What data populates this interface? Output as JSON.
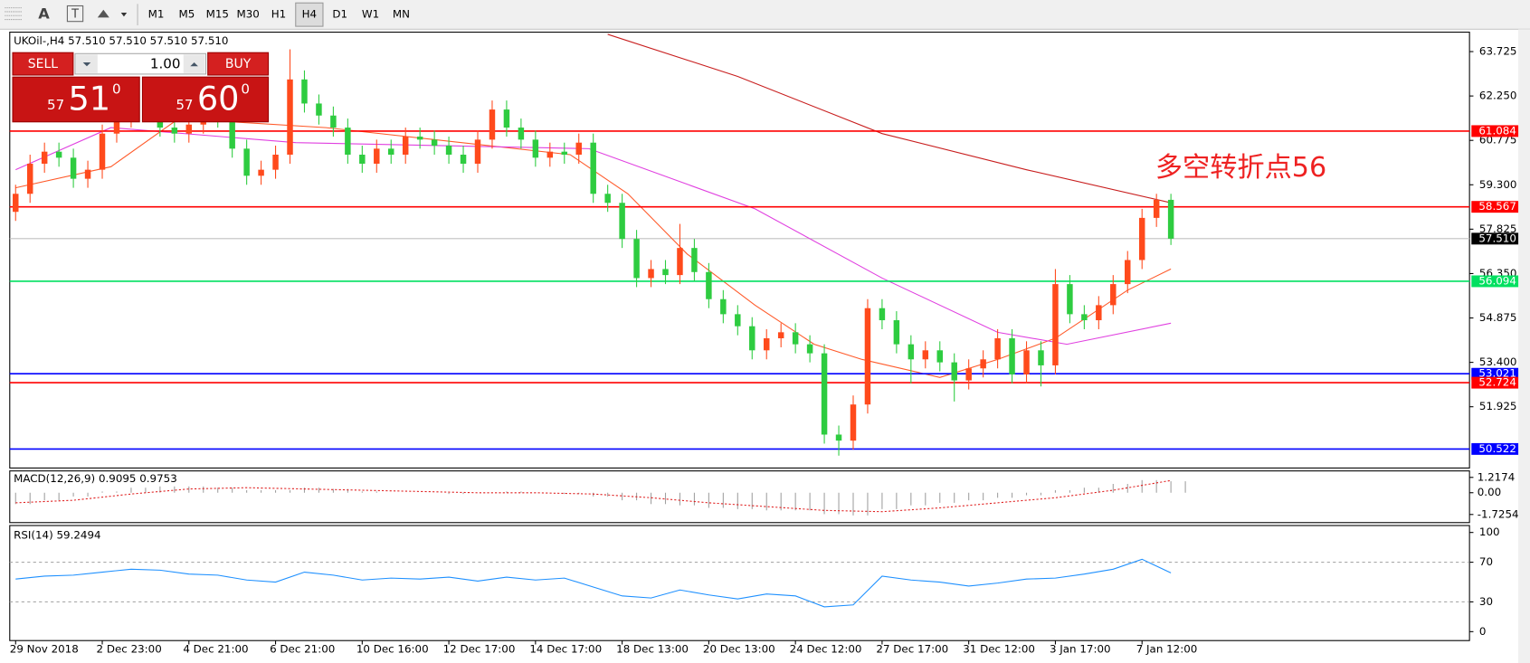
{
  "toolbar": {
    "tools": [
      "A",
      "T"
    ],
    "periods": [
      "M1",
      "M5",
      "M15",
      "M30",
      "H1",
      "H4",
      "D1",
      "W1",
      "MN"
    ],
    "active_index": 5
  },
  "trade_panel": {
    "symbol_line": "UKOil-,H4  57.510 57.510 57.510 57.510",
    "sell": "SELL",
    "buy": "BUY",
    "lot": "1.00",
    "sell_price": {
      "prefix": "57",
      "main": "51",
      "sup": "0"
    },
    "buy_price": {
      "prefix": "57",
      "main": "60",
      "sup": "0"
    }
  },
  "chart_data": [
    {
      "type": "candlestick",
      "up_color": "#ff4a1c",
      "down_color": "#2ecc40",
      "x_labels": [
        "29 Nov 2018",
        "2 Dec 23:00",
        "4 Dec 21:00",
        "6 Dec 21:00",
        "10 Dec 16:00",
        "12 Dec 17:00",
        "14 Dec 17:00",
        "18 Dec 13:00",
        "20 Dec 13:00",
        "24 Dec 12:00",
        "27 Dec 17:00",
        "31 Dec 12:00",
        "3 Jan 17:00",
        "7 Jan 12:00"
      ],
      "open": [
        58.4,
        59.0,
        60.0,
        60.4,
        60.2,
        59.5,
        59.8,
        61.0,
        61.5,
        62.3,
        61.8,
        61.2,
        61.0,
        61.3,
        61.8,
        61.5,
        60.5,
        59.6,
        59.8,
        60.3,
        62.8,
        62.0,
        61.6,
        61.2,
        60.3,
        60.0,
        60.5,
        60.3,
        60.9,
        60.8,
        60.6,
        60.3,
        60.0,
        60.8,
        61.8,
        61.2,
        60.8,
        60.2,
        60.4,
        60.3,
        60.7,
        59.0,
        58.7,
        57.5,
        56.2,
        56.5,
        56.3,
        57.2,
        56.4,
        55.5,
        55.0,
        54.6,
        53.8,
        54.2,
        54.4,
        54.0,
        53.7,
        51.0,
        50.8,
        52.0,
        55.2,
        54.8,
        54.0,
        53.5,
        53.8,
        53.4,
        52.8,
        53.2,
        53.5,
        54.2,
        53.0,
        53.8,
        53.3,
        56.0,
        55.0,
        54.8,
        55.3,
        56.0,
        56.8,
        58.2,
        58.8
      ],
      "high": [
        59.3,
        60.3,
        60.7,
        60.7,
        60.5,
        60.1,
        61.3,
        61.8,
        62.6,
        62.6,
        62.1,
        61.5,
        61.6,
        62.1,
        62.1,
        61.8,
        60.8,
        60.1,
        60.6,
        63.8,
        63.1,
        62.3,
        61.9,
        61.5,
        60.6,
        60.8,
        60.8,
        61.2,
        61.2,
        61.1,
        60.9,
        60.6,
        61.1,
        62.1,
        62.1,
        61.5,
        61.1,
        60.7,
        60.7,
        61.0,
        61.0,
        59.3,
        59.0,
        57.8,
        56.8,
        56.8,
        58.0,
        57.5,
        56.7,
        55.8,
        55.3,
        54.9,
        54.5,
        54.7,
        54.7,
        54.3,
        54.0,
        51.3,
        52.3,
        55.5,
        55.5,
        55.1,
        54.3,
        54.1,
        54.1,
        53.7,
        53.5,
        53.8,
        54.5,
        54.5,
        54.1,
        54.1,
        56.5,
        56.3,
        55.3,
        55.6,
        56.3,
        57.1,
        58.5,
        59.0,
        59.0
      ],
      "low": [
        58.1,
        58.7,
        59.7,
        59.9,
        59.2,
        59.2,
        59.5,
        60.7,
        61.2,
        61.5,
        60.9,
        60.7,
        60.7,
        61.0,
        61.2,
        60.2,
        59.3,
        59.3,
        59.5,
        60.0,
        61.7,
        61.3,
        60.9,
        60.0,
        59.7,
        59.7,
        60.0,
        60.0,
        60.5,
        60.3,
        60.0,
        59.7,
        59.7,
        60.5,
        60.9,
        60.5,
        59.9,
        59.9,
        60.0,
        60.0,
        58.7,
        58.4,
        57.2,
        55.9,
        55.9,
        56.0,
        56.0,
        56.1,
        55.2,
        54.7,
        54.3,
        53.5,
        53.5,
        53.9,
        53.7,
        53.4,
        50.7,
        50.3,
        50.5,
        51.7,
        54.5,
        53.7,
        52.7,
        53.2,
        53.1,
        52.1,
        52.5,
        52.9,
        53.2,
        52.7,
        52.7,
        52.6,
        53.0,
        54.7,
        54.5,
        54.5,
        55.0,
        55.7,
        56.5,
        57.9,
        57.3
      ],
      "close": [
        59.0,
        60.0,
        60.4,
        60.2,
        59.5,
        59.8,
        61.0,
        61.5,
        62.3,
        61.8,
        61.2,
        61.0,
        61.3,
        61.8,
        61.5,
        60.5,
        59.6,
        59.8,
        60.3,
        62.8,
        62.0,
        61.6,
        61.2,
        60.3,
        60.0,
        60.5,
        60.3,
        60.9,
        60.8,
        60.6,
        60.3,
        60.0,
        60.8,
        61.8,
        61.2,
        60.8,
        60.2,
        60.4,
        60.3,
        60.7,
        59.0,
        58.7,
        57.5,
        56.2,
        56.5,
        56.3,
        57.2,
        56.4,
        55.5,
        55.0,
        54.6,
        53.8,
        54.2,
        54.4,
        54.0,
        53.7,
        51.0,
        50.8,
        52.0,
        55.2,
        54.8,
        54.0,
        53.5,
        53.8,
        53.4,
        52.8,
        53.2,
        53.5,
        54.2,
        53.0,
        53.8,
        53.3,
        56.0,
        55.0,
        54.8,
        55.3,
        56.0,
        56.8,
        58.2,
        58.8,
        57.51
      ],
      "ylim": [
        49.89,
        64.37
      ],
      "yticks": [
        63.725,
        {
          "value": 62.25,
          "label": "62.250"
        },
        60.775,
        {
          "value": 59.3,
          "label": "59.300"
        },
        57.825,
        {
          "value": 56.35,
          "label": "56.350"
        },
        54.875,
        {
          "value": 53.4,
          "label": "53.400"
        },
        51.925
      ],
      "moving_averages": [
        {
          "color": "#ff5a2a",
          "x": [
            0,
            6.6,
            11.3,
            21.5,
            38.4,
            42.4,
            46.5,
            51.2,
            55.3,
            58.6,
            64,
            68,
            72,
            77,
            80
          ],
          "values": [
            59.2,
            59.9,
            61.5,
            61.2,
            60.3,
            59.0,
            57.0,
            55.3,
            54.0,
            53.5,
            52.9,
            53.5,
            54.2,
            55.8,
            56.5
          ]
        },
        {
          "color": "#e040e0",
          "x": [
            0,
            6.6,
            19.4,
            39.7,
            51.2,
            60,
            68,
            72.8,
            80
          ],
          "values": [
            59.8,
            61.2,
            60.7,
            60.5,
            58.5,
            56.2,
            54.4,
            54.0,
            54.7
          ]
        },
        {
          "color": "#c81e1e",
          "x": [
            41,
            50,
            60,
            70,
            80
          ],
          "values": [
            64.3,
            62.9,
            61.0,
            59.8,
            58.7
          ]
        }
      ],
      "levels": [
        {
          "value": 61.084,
          "color": "#ff0000"
        },
        {
          "value": 58.567,
          "color": "#ff0000"
        },
        {
          "value": 56.094,
          "color": "#00e060"
        },
        {
          "value": 53.021,
          "color": "#0000ff"
        },
        {
          "value": 52.724,
          "color": "#ff0000"
        },
        {
          "value": 50.522,
          "color": "#0000ff"
        }
      ],
      "current_price": {
        "value": 57.51,
        "label": "57.510"
      },
      "annotation": "多空转折点56"
    },
    {
      "type": "macd",
      "title": "MACD(12,26,9) 0.9095 0.9753",
      "ylim": [
        -2.37,
        1.73
      ],
      "yticks": [
        1.2174,
        {
          "value": 0,
          "label": "0.00"
        },
        -1.7254
      ],
      "histogram": {
        "color": "#a0a0a0",
        "x": [
          0,
          2,
          4,
          6,
          8,
          10,
          12,
          14,
          16,
          18,
          20,
          22,
          24,
          26,
          28,
          30,
          32,
          34,
          36,
          38,
          40,
          42,
          44,
          46,
          48,
          50,
          52,
          54,
          56,
          58,
          60,
          62,
          64,
          66,
          68,
          70,
          72,
          74,
          76,
          78,
          80
        ],
        "values": [
          -0.9,
          -0.6,
          -0.3,
          0.1,
          0.4,
          0.5,
          0.5,
          0.4,
          0.2,
          0.2,
          0.4,
          0.3,
          0.1,
          0.0,
          0.0,
          -0.1,
          0.0,
          0.1,
          0.0,
          -0.1,
          -0.3,
          -0.6,
          -0.9,
          -1.0,
          -1.2,
          -1.3,
          -1.4,
          -1.4,
          -1.7,
          -1.8,
          -1.3,
          -1.0,
          -0.8,
          -0.6,
          -0.4,
          -0.2,
          0.2,
          0.4,
          0.7,
          1.0,
          0.9095
        ]
      },
      "signal": {
        "color": "#e02020",
        "x": [
          0,
          4,
          8,
          12,
          16,
          20,
          24,
          28,
          32,
          36,
          40,
          44,
          48,
          52,
          56,
          60,
          64,
          68,
          72,
          76,
          80
        ],
        "values": [
          -0.8,
          -0.6,
          -0.1,
          0.3,
          0.4,
          0.3,
          0.2,
          0.1,
          0.0,
          0.0,
          -0.1,
          -0.4,
          -0.8,
          -1.1,
          -1.4,
          -1.5,
          -1.2,
          -0.8,
          -0.4,
          0.2,
          0.9753
        ]
      }
    },
    {
      "type": "line",
      "title": "RSI(14) 59.2494",
      "color": "#1e90ff",
      "ylim": [
        -9,
        107
      ],
      "yticks": [
        100,
        70,
        30,
        0
      ],
      "levels": [
        70,
        30
      ],
      "x": [
        0,
        2,
        4,
        6,
        8,
        10,
        12,
        14,
        16,
        18,
        20,
        22,
        24,
        26,
        28,
        30,
        32,
        34,
        36,
        38,
        40,
        42,
        44,
        46,
        48,
        50,
        52,
        54,
        56,
        58,
        60,
        62,
        64,
        66,
        68,
        70,
        72,
        74,
        76,
        78,
        80
      ],
      "values": [
        53,
        56,
        57,
        60,
        63,
        62,
        58,
        57,
        52,
        50,
        60,
        57,
        52,
        54,
        53,
        55,
        51,
        55,
        52,
        54,
        45,
        36,
        34,
        42,
        37,
        33,
        38,
        36,
        25,
        27,
        56,
        52,
        50,
        46,
        49,
        53,
        54,
        58,
        63,
        73,
        59.2494
      ]
    }
  ]
}
